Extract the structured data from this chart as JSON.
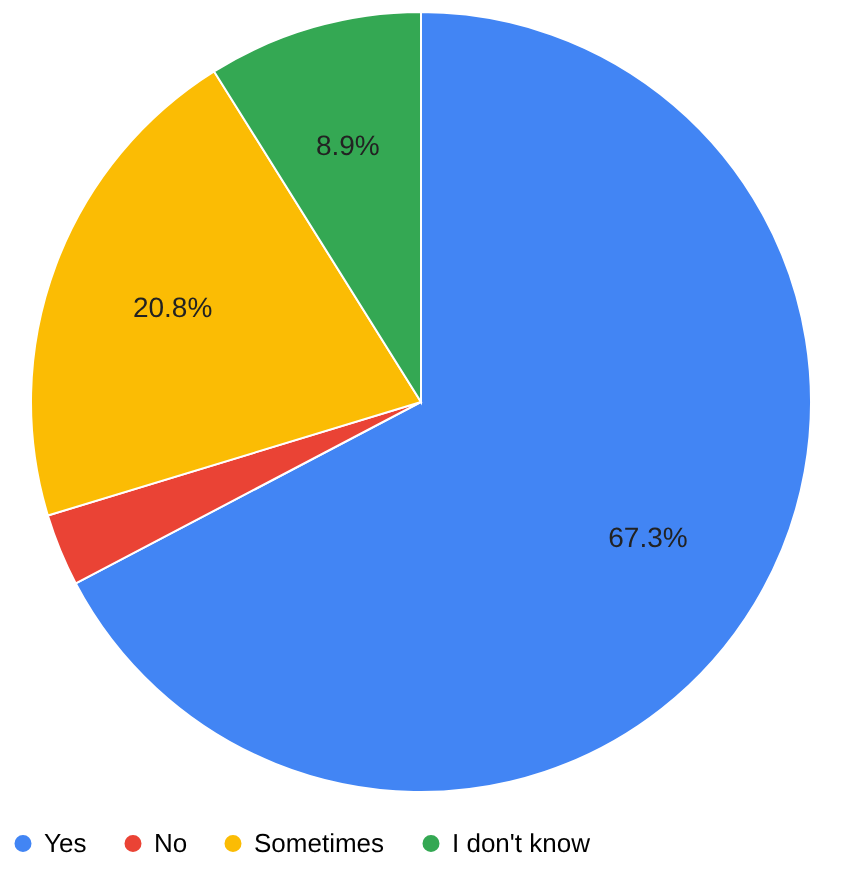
{
  "chart_data": {
    "type": "pie",
    "categories": [
      "Yes",
      "No",
      "Sometimes",
      "I don't know"
    ],
    "values": [
      67.3,
      3.0,
      20.8,
      8.9
    ],
    "value_labels": [
      "67.3%",
      null,
      "20.8%",
      "8.9%"
    ],
    "colors": [
      "#4285f4",
      "#ea4335",
      "#fbbc04",
      "#34a853"
    ],
    "legend": "bottom"
  }
}
